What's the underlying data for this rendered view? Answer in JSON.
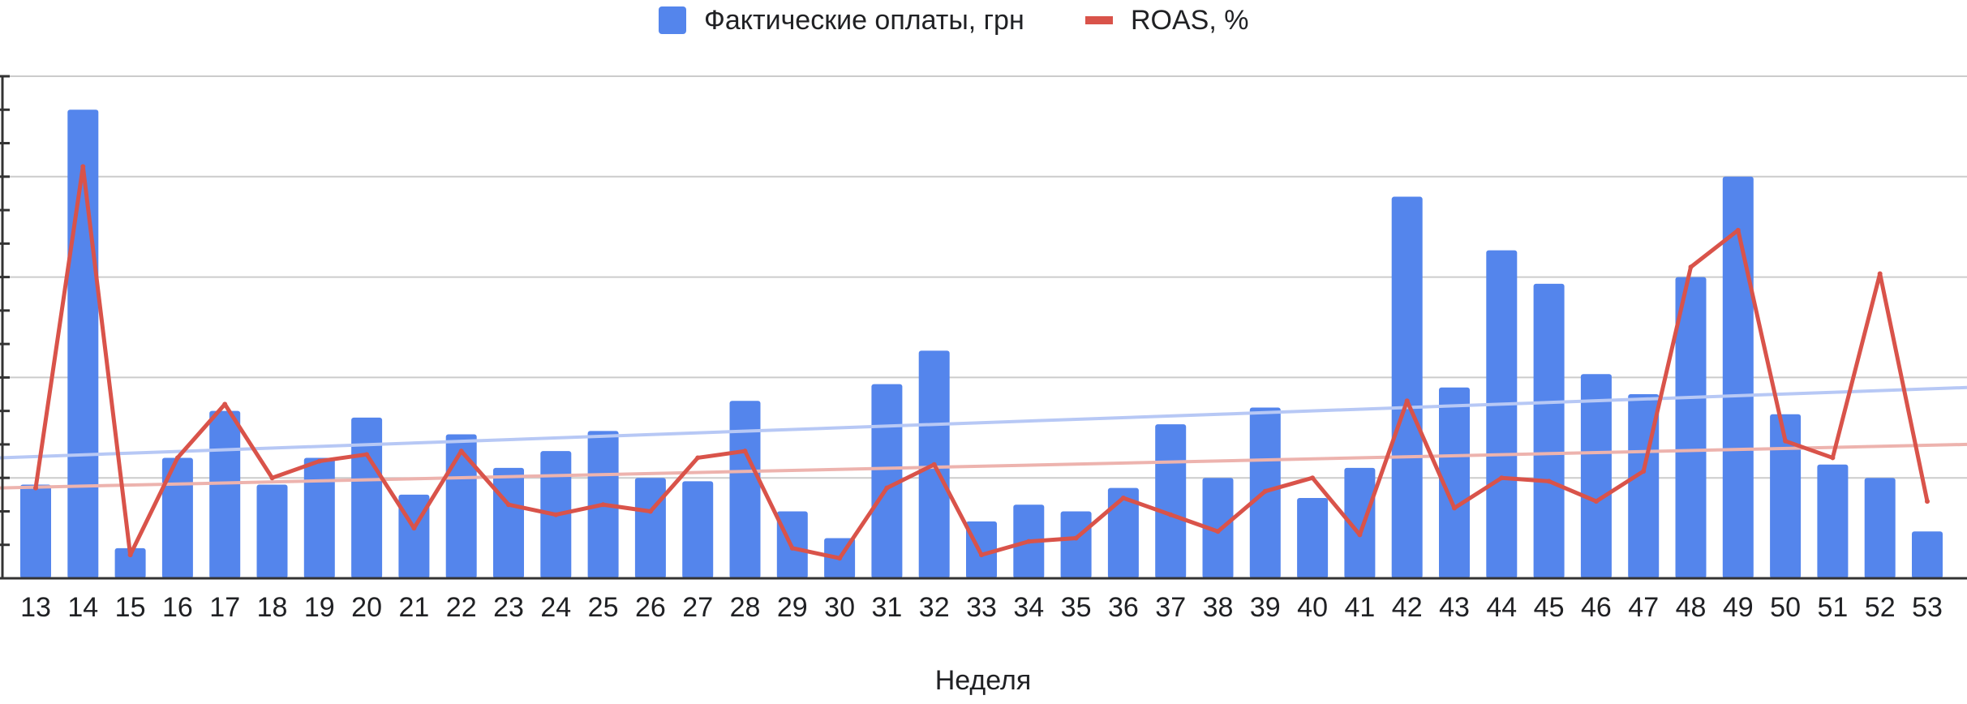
{
  "chart_data": {
    "type": "bar",
    "categories": [
      "13",
      "14",
      "15",
      "16",
      "17",
      "18",
      "19",
      "20",
      "21",
      "22",
      "23",
      "24",
      "25",
      "26",
      "27",
      "28",
      "29",
      "30",
      "31",
      "32",
      "33",
      "34",
      "35",
      "36",
      "37",
      "38",
      "39",
      "40",
      "41",
      "42",
      "43",
      "44",
      "45",
      "46",
      "47",
      "48",
      "49",
      "50",
      "51",
      "52",
      "53"
    ],
    "xlabel": "Неделя",
    "ylabel": "",
    "y_tick_labels_visible": false,
    "ylim": [
      0,
      15
    ],
    "y2lim": [
      0,
      15
    ],
    "grid": true,
    "legend_position": "top-center",
    "series": [
      {
        "name": "Фактические оплаты, грн",
        "type": "bar",
        "color": "#5485EC",
        "values": [
          2.8,
          14.0,
          0.9,
          3.6,
          5.0,
          2.8,
          3.6,
          4.8,
          2.5,
          4.3,
          3.3,
          3.8,
          4.4,
          3.0,
          2.9,
          5.3,
          2.0,
          1.2,
          5.8,
          6.8,
          1.7,
          2.2,
          2.0,
          2.7,
          4.6,
          3.0,
          5.1,
          2.4,
          3.3,
          11.4,
          5.7,
          9.8,
          8.8,
          6.1,
          5.5,
          9.0,
          12.0,
          4.9,
          3.4,
          3.0,
          1.4
        ],
        "trendline": {
          "start": 3.6,
          "end": 5.7,
          "color": "#B7C8F5"
        }
      },
      {
        "name": "ROAS, %",
        "type": "line",
        "color": "#D9534A",
        "values": [
          2.7,
          12.3,
          0.7,
          3.6,
          5.2,
          3.0,
          3.5,
          3.7,
          1.5,
          3.8,
          2.2,
          1.9,
          2.2,
          2.0,
          3.6,
          3.8,
          0.9,
          0.6,
          2.7,
          3.4,
          0.7,
          1.1,
          1.2,
          2.4,
          1.9,
          1.4,
          2.6,
          3.0,
          1.3,
          5.3,
          2.1,
          3.0,
          2.9,
          2.3,
          3.2,
          9.3,
          10.4,
          4.1,
          3.6,
          9.1,
          2.3
        ],
        "trendline": {
          "start": 2.7,
          "end": 4.0,
          "color": "#EDB3AE"
        }
      }
    ]
  }
}
